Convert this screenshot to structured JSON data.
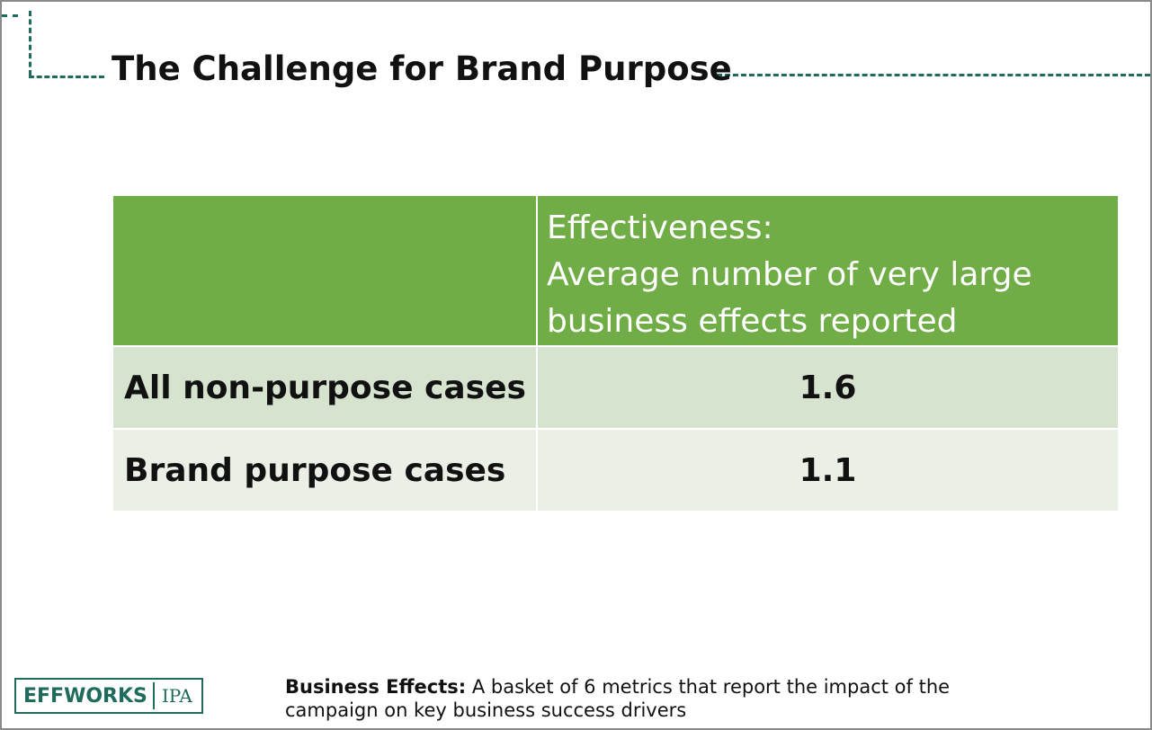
{
  "title": "The Challenge for Brand Purpose",
  "table": {
    "header": {
      "col1": "",
      "col2_line1": "Effectiveness:",
      "col2_line2": "Average number of very large",
      "col2_line3": "business effects reported"
    },
    "rows": [
      {
        "label": "All non-purpose cases",
        "value": "1.6"
      },
      {
        "label": "Brand purpose cases",
        "value": "1.1"
      }
    ]
  },
  "footer": {
    "note_term": "Business Effects:",
    "note_text": "A basket of 6 metrics that report the impact of the campaign on key business success drivers",
    "logo_left": "EFFWORKS",
    "logo_right": "IPA"
  },
  "colors": {
    "header_green": "#70ad47",
    "row1_bg": "#d6e3cf",
    "row2_bg": "#eaf0e6",
    "accent_teal": "#1f6b5c"
  }
}
